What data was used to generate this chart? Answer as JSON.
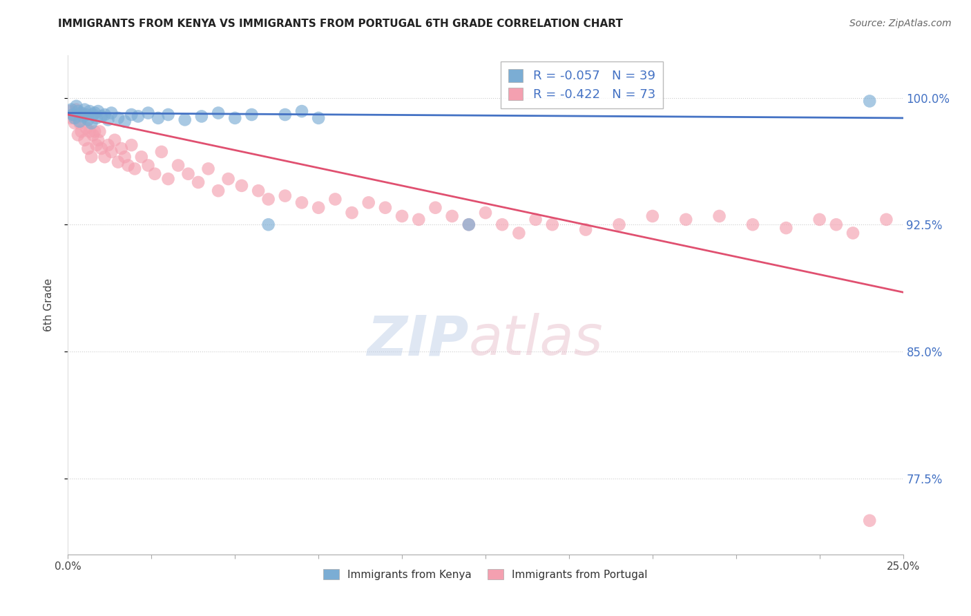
{
  "title": "IMMIGRANTS FROM KENYA VS IMMIGRANTS FROM PORTUGAL 6TH GRADE CORRELATION CHART",
  "source": "Source: ZipAtlas.com",
  "ylabel": "6th Grade",
  "y_ticks": [
    77.5,
    85.0,
    92.5,
    100.0
  ],
  "y_tick_labels": [
    "77.5%",
    "85.0%",
    "92.5%",
    "100.0%"
  ],
  "xlim": [
    0.0,
    25.0
  ],
  "ylim": [
    73.0,
    102.5
  ],
  "kenya_R": -0.057,
  "kenya_N": 39,
  "portugal_R": -0.422,
  "portugal_N": 73,
  "kenya_color": "#7BADD4",
  "portugal_color": "#F4A0B0",
  "kenya_line_color": "#4472C4",
  "portugal_line_color": "#E05070",
  "legend_label_kenya": "Immigrants from Kenya",
  "legend_label_portugal": "Immigrants from Portugal",
  "kenya_line_x0": 0.0,
  "kenya_line_y0": 99.1,
  "kenya_line_x1": 25.0,
  "kenya_line_y1": 98.8,
  "portugal_line_x0": 0.0,
  "portugal_line_y0": 99.0,
  "portugal_line_x1": 25.0,
  "portugal_line_y1": 88.5,
  "kenya_scatter_x": [
    0.1,
    0.15,
    0.2,
    0.25,
    0.3,
    0.35,
    0.4,
    0.45,
    0.5,
    0.55,
    0.6,
    0.65,
    0.7,
    0.75,
    0.8,
    0.85,
    0.9,
    1.0,
    1.1,
    1.2,
    1.3,
    1.5,
    1.7,
    1.9,
    2.1,
    2.4,
    2.7,
    3.0,
    3.5,
    4.0,
    4.5,
    5.0,
    5.5,
    6.0,
    6.5,
    7.0,
    7.5,
    12.0,
    24.0
  ],
  "kenya_scatter_y": [
    99.3,
    99.0,
    98.8,
    99.5,
    99.2,
    98.6,
    99.1,
    98.9,
    99.3,
    99.0,
    98.7,
    99.2,
    98.5,
    99.0,
    99.1,
    98.8,
    99.2,
    98.9,
    99.0,
    98.7,
    99.1,
    98.8,
    98.6,
    99.0,
    98.9,
    99.1,
    98.8,
    99.0,
    98.7,
    98.9,
    99.1,
    98.8,
    99.0,
    92.5,
    99.0,
    99.2,
    98.8,
    92.5,
    99.8
  ],
  "portugal_scatter_x": [
    0.05,
    0.1,
    0.15,
    0.2,
    0.25,
    0.3,
    0.35,
    0.4,
    0.45,
    0.5,
    0.55,
    0.6,
    0.65,
    0.7,
    0.75,
    0.8,
    0.85,
    0.9,
    0.95,
    1.0,
    1.1,
    1.2,
    1.3,
    1.4,
    1.5,
    1.6,
    1.7,
    1.8,
    1.9,
    2.0,
    2.2,
    2.4,
    2.6,
    2.8,
    3.0,
    3.3,
    3.6,
    3.9,
    4.2,
    4.5,
    4.8,
    5.2,
    5.7,
    6.0,
    6.5,
    7.0,
    7.5,
    8.0,
    8.5,
    9.0,
    9.5,
    10.0,
    10.5,
    11.0,
    11.5,
    12.0,
    12.5,
    13.0,
    13.5,
    14.0,
    14.5,
    15.5,
    16.5,
    17.5,
    18.5,
    19.5,
    20.5,
    21.5,
    22.5,
    23.0,
    23.5,
    24.0,
    24.5
  ],
  "portugal_scatter_y": [
    99.2,
    98.8,
    99.0,
    98.5,
    99.3,
    97.8,
    98.5,
    98.0,
    99.0,
    97.5,
    98.2,
    97.0,
    98.0,
    96.5,
    97.8,
    98.0,
    97.2,
    97.5,
    98.0,
    97.0,
    96.5,
    97.2,
    96.8,
    97.5,
    96.2,
    97.0,
    96.5,
    96.0,
    97.2,
    95.8,
    96.5,
    96.0,
    95.5,
    96.8,
    95.2,
    96.0,
    95.5,
    95.0,
    95.8,
    94.5,
    95.2,
    94.8,
    94.5,
    94.0,
    94.2,
    93.8,
    93.5,
    94.0,
    93.2,
    93.8,
    93.5,
    93.0,
    92.8,
    93.5,
    93.0,
    92.5,
    93.2,
    92.5,
    92.0,
    92.8,
    92.5,
    92.2,
    92.5,
    93.0,
    92.8,
    93.0,
    92.5,
    92.3,
    92.8,
    92.5,
    92.0,
    75.0,
    92.8
  ]
}
